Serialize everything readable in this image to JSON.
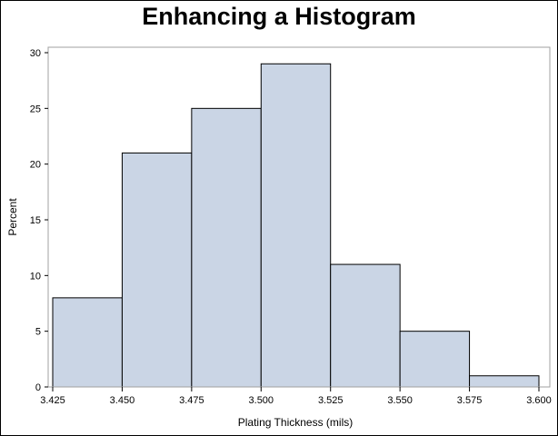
{
  "chart_data": {
    "type": "bar",
    "title": "Enhancing a Histogram",
    "xlabel": "Plating Thickness (mils)",
    "ylabel": "Percent",
    "bin_edges": [
      3.425,
      3.45,
      3.475,
      3.5,
      3.525,
      3.55,
      3.575,
      3.6
    ],
    "values": [
      8,
      21,
      25,
      29,
      11,
      5,
      1
    ],
    "x_ticks": [
      "3.425",
      "3.450",
      "3.475",
      "3.500",
      "3.525",
      "3.550",
      "3.575",
      "3.600"
    ],
    "y_ticks": [
      "0",
      "5",
      "10",
      "15",
      "20",
      "25",
      "30"
    ],
    "xlim": [
      3.425,
      3.6
    ],
    "ylim": [
      0,
      30
    ],
    "grid": false,
    "bar_fill": "#cad5e5",
    "bar_stroke": "#000000",
    "frame_color": "#a0a0a0"
  }
}
